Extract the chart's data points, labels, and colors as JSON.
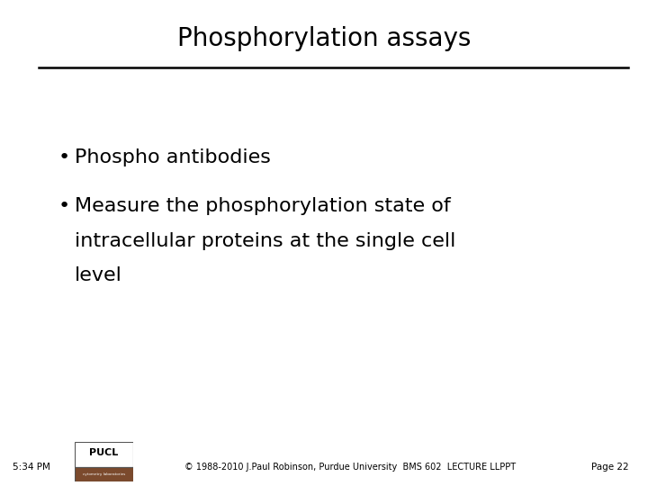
{
  "title": "Phosphorylation assays",
  "title_fontsize": 20,
  "title_color": "#000000",
  "background_color": "#ffffff",
  "bullet1": "Phospho antibodies",
  "bullet2_line1": "Measure the phosphorylation state of",
  "bullet2_line2": "intracellular proteins at the single cell",
  "bullet2_line3": "level",
  "bullet_fontsize": 16,
  "footer_time": "5:34 PM",
  "footer_copyright": "© 1988-2010 J.Paul Robinson, Purdue University  BMS 602  LECTURE LLPPT",
  "footer_page": "Page 22",
  "footer_fontsize": 7.5,
  "line_color": "#000000",
  "text_color": "#000000",
  "logo_top_color": "#ffffff",
  "logo_bottom_color": "#8B4513"
}
